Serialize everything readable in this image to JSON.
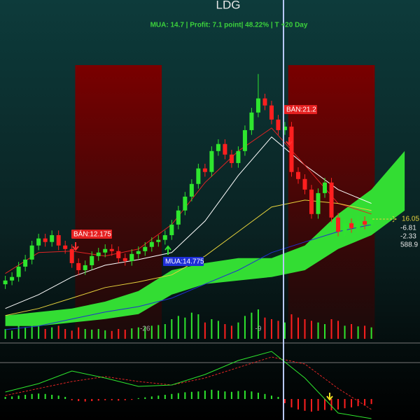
{
  "chart_data": {
    "type": "candlestick",
    "title": "LDG",
    "subtitle": "MUA:  14.7 | Profit: 7.1 point| 48.22% | T +20 Day",
    "x": [
      -47,
      -46,
      -45,
      -44,
      -43,
      -42,
      -41,
      -40,
      -39,
      -38,
      -37,
      -36,
      -35,
      -34,
      -33,
      -32,
      -31,
      -30,
      -29,
      -28,
      -27,
      -26,
      -25,
      -24,
      -23,
      -22,
      -21,
      -20,
      -19,
      -18,
      -17,
      -16,
      -15,
      -14,
      -13,
      -12,
      -11,
      -10,
      -9,
      -8,
      -7,
      -6,
      -5,
      -4,
      -3,
      -2,
      -1,
      0,
      1,
      2,
      3,
      4,
      5,
      6,
      7,
      8
    ],
    "open": [
      13.3,
      13.46,
      13.61,
      14.05,
      14.35,
      14.95,
      15.25,
      15.1,
      15.39,
      14.95,
      14.8,
      14.2,
      13.9,
      14.11,
      14.5,
      14.65,
      14.8,
      14.71,
      14.41,
      14.29,
      14.59,
      14.71,
      14.89,
      15.1,
      15.19,
      15.39,
      15.84,
      16.44,
      17.03,
      17.57,
      18.23,
      18.08,
      18.97,
      19.27,
      18.82,
      18.46,
      18.97,
      19.86,
      20.61,
      21.21,
      20.91,
      20.31,
      19.86,
      20.01,
      18.08,
      17.78,
      17.33,
      16.29,
      17.18,
      17.63,
      16.14,
      15.54,
      15.9,
      15.69,
      15.99,
      15.84
    ],
    "high": [
      13.66,
      13.81,
      14.25,
      14.55,
      15.15,
      15.45,
      15.45,
      15.59,
      15.59,
      15.15,
      15.0,
      14.4,
      14.31,
      14.7,
      14.85,
      15.0,
      15.0,
      14.91,
      14.61,
      14.79,
      14.91,
      15.09,
      15.3,
      15.39,
      15.59,
      16.04,
      16.64,
      17.23,
      17.77,
      18.43,
      18.43,
      19.17,
      19.47,
      19.47,
      19.02,
      19.17,
      20.06,
      20.81,
      22.25,
      21.41,
      21.11,
      20.51,
      20.21,
      20.21,
      18.28,
      17.98,
      17.53,
      17.38,
      17.83,
      17.83,
      16.34,
      16.1,
      16.1,
      16.19,
      16.19,
      16.25
    ],
    "low": [
      13.1,
      13.26,
      13.41,
      13.85,
      14.15,
      14.75,
      14.9,
      14.9,
      14.75,
      14.6,
      14.0,
      13.7,
      13.7,
      13.91,
      14.3,
      14.45,
      14.51,
      14.21,
      14.09,
      14.09,
      14.39,
      14.51,
      14.69,
      14.9,
      14.99,
      15.19,
      15.64,
      16.24,
      16.83,
      17.37,
      17.88,
      17.88,
      18.77,
      18.62,
      18.26,
      18.26,
      18.77,
      19.66,
      20.41,
      20.71,
      20.11,
      19.66,
      19.66,
      17.88,
      17.58,
      17.13,
      16.09,
      16.09,
      16.98,
      15.94,
      15.34,
      15.34,
      15.49,
      15.49,
      15.64,
      15.64
    ],
    "close": [
      13.46,
      13.61,
      14.05,
      14.35,
      14.95,
      15.25,
      15.1,
      15.39,
      14.95,
      14.8,
      14.2,
      13.9,
      14.11,
      14.5,
      14.65,
      14.8,
      14.71,
      14.41,
      14.29,
      14.59,
      14.71,
      14.89,
      15.1,
      15.19,
      15.39,
      15.84,
      16.44,
      17.03,
      17.57,
      18.23,
      18.08,
      18.97,
      19.27,
      18.82,
      18.46,
      18.97,
      19.86,
      20.61,
      21.21,
      20.91,
      20.31,
      19.86,
      20.01,
      18.08,
      17.78,
      17.33,
      16.29,
      17.18,
      17.63,
      16.14,
      15.54,
      15.9,
      15.69,
      15.99,
      15.84,
      16.05
    ],
    "volume": [
      300,
      250,
      400,
      350,
      500,
      450,
      300,
      350,
      400,
      300,
      250,
      350,
      300,
      280,
      300,
      260,
      240,
      300,
      280,
      320,
      350,
      380,
      400,
      420,
      450,
      600,
      700,
      650,
      800,
      750,
      500,
      600,
      550,
      450,
      400,
      500,
      700,
      800,
      900,
      650,
      600,
      550,
      500,
      750,
      650,
      600,
      550,
      500,
      450,
      600,
      550,
      400,
      450,
      380,
      400,
      350
    ],
    "xlim": [
      -47.8,
      15.3
    ],
    "ylim": [
      10.8,
      25.4
    ],
    "volume_lim": [
      0,
      1500
    ],
    "xticks": [
      -26,
      -9
    ],
    "up_color": "#2ee62e",
    "down_color": "#ff1f1f",
    "overlay_x": [
      -47,
      -42,
      -37,
      -32,
      -27,
      -22,
      -17,
      -12,
      -7,
      -2,
      3,
      8
    ],
    "overlays": [
      {
        "color": "#ffffff",
        "values": [
          12.27,
          12.86,
          13.61,
          14.11,
          14.35,
          14.65,
          15.99,
          17.93,
          19.57,
          18.37,
          17.33,
          16.74
        ]
      },
      {
        "color": "#e02424",
        "values": [
          13.76,
          14.65,
          14.71,
          14.5,
          14.8,
          15.84,
          17.63,
          18.97,
          19.95,
          18.37,
          16.74,
          16.29
        ]
      },
      {
        "color": "#e6d23c",
        "values": [
          11.97,
          12.27,
          12.71,
          13.16,
          13.4,
          13.7,
          14.5,
          15.54,
          16.59,
          16.88,
          16.74,
          16.44
        ]
      },
      {
        "color": "#2030d0",
        "values": [
          11.37,
          11.52,
          11.82,
          12.12,
          12.35,
          12.71,
          13.31,
          13.9,
          14.65,
          15.1,
          15.54,
          15.84
        ]
      }
    ],
    "cloud": {
      "color": "#33dd33",
      "x": [
        -47,
        -42,
        -37,
        -32,
        -27,
        -22,
        -17,
        -12,
        -7,
        -2,
        3,
        8,
        13
      ],
      "upper": [
        11.97,
        12.12,
        12.27,
        12.56,
        13.01,
        13.9,
        14.2,
        14.41,
        14.41,
        14.95,
        16.29,
        17.33,
        18.97
      ],
      "lower": [
        11.52,
        11.52,
        11.67,
        11.82,
        12.03,
        12.86,
        13.31,
        13.46,
        13.61,
        13.9,
        14.8,
        15.39,
        16.44
      ]
    },
    "sell_zones": [
      [
        -36.5,
        -23.5
      ],
      [
        -4.5,
        8.5
      ]
    ],
    "annotations": [
      "BÁN:12.175",
      "MUA:14.775",
      "BÁN:21.2"
    ],
    "right_labels": [
      "16.05",
      "-6.81",
      "-2.33",
      "588.9"
    ],
    "macd": {
      "ylim": [
        -0.5,
        1.3
      ],
      "line_color": "#2ee62e",
      "signal_color": "#e02424",
      "line": [
        0.167,
        0.367,
        0.667,
        0.5,
        0.3,
        0.333,
        0.583,
        0.917,
        1.133,
        0.5,
        -0.333,
        -0.467
      ],
      "signal": [
        0.083,
        0.25,
        0.417,
        0.533,
        0.417,
        0.333,
        0.5,
        0.75,
        1.0,
        0.833,
        0.25,
        -0.25
      ],
      "hist": [
        0.05,
        0.06,
        0.08,
        0.1,
        0.12,
        0.13,
        0.12,
        0.1,
        0.08,
        0.05,
        -0.03,
        -0.05,
        -0.06,
        -0.05,
        -0.04,
        -0.03,
        -0.03,
        -0.04,
        -0.03,
        -0.02,
        0.02,
        0.04,
        0.06,
        0.08,
        0.1,
        0.12,
        0.14,
        0.16,
        0.17,
        0.18,
        0.2,
        0.22,
        0.2,
        0.18,
        0.17,
        0.19,
        0.2,
        0.18,
        0.15,
        0.12,
        0.08,
        0.05,
        -0.1,
        -0.2,
        -0.25,
        -0.28,
        -0.3,
        -0.28,
        -0.26,
        -0.27,
        -0.25,
        -0.22,
        -0.2,
        -0.17,
        -0.15,
        -0.12
      ]
    }
  }
}
